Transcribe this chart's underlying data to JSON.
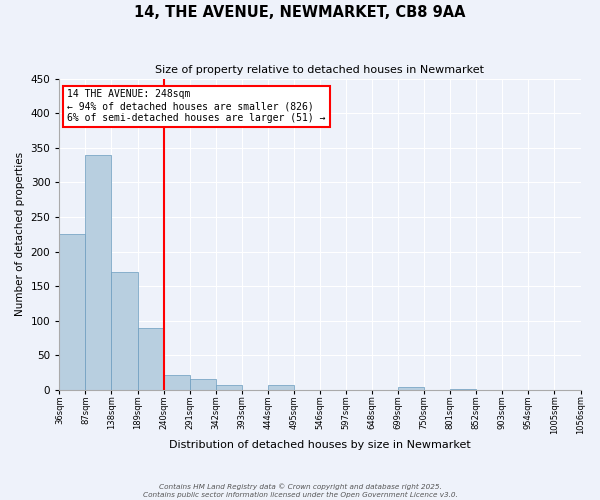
{
  "title": "14, THE AVENUE, NEWMARKET, CB8 9AA",
  "subtitle": "Size of property relative to detached houses in Newmarket",
  "xlabel": "Distribution of detached houses by size in Newmarket",
  "ylabel": "Number of detached properties",
  "bar_values": [
    226,
    340,
    170,
    90,
    21,
    16,
    7,
    0,
    7,
    0,
    0,
    0,
    0,
    4,
    0,
    2,
    0,
    0,
    0,
    0
  ],
  "bin_labels": [
    "36sqm",
    "87sqm",
    "138sqm",
    "189sqm",
    "240sqm",
    "291sqm",
    "342sqm",
    "393sqm",
    "444sqm",
    "495sqm",
    "546sqm",
    "597sqm",
    "648sqm",
    "699sqm",
    "750sqm",
    "801sqm",
    "852sqm",
    "903sqm",
    "954sqm",
    "1005sqm",
    "1056sqm"
  ],
  "n_bins": 20,
  "bar_color": "#b8cfe0",
  "bar_edge_color": "#6a9cbf",
  "vline_color": "red",
  "vline_bin_index": 4,
  "annotation_title": "14 THE AVENUE: 248sqm",
  "annotation_line2": "← 94% of detached houses are smaller (826)",
  "annotation_line3": "6% of semi-detached houses are larger (51) →",
  "annotation_box_color": "white",
  "annotation_box_edge": "red",
  "ylim": [
    0,
    450
  ],
  "yticks": [
    0,
    50,
    100,
    150,
    200,
    250,
    300,
    350,
    400,
    450
  ],
  "background_color": "#eef2fa",
  "footer1": "Contains HM Land Registry data © Crown copyright and database right 2025.",
  "footer2": "Contains public sector information licensed under the Open Government Licence v3.0.",
  "figsize": [
    6.0,
    5.0
  ],
  "dpi": 100
}
